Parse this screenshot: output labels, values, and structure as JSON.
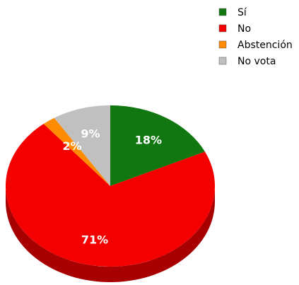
{
  "chart_data": {
    "type": "pie",
    "title": "",
    "categories": [
      "Sí",
      "No",
      "Abstención",
      "No vota"
    ],
    "values": [
      18,
      71,
      2,
      9
    ],
    "labels": [
      "18%",
      "71%",
      "2%",
      "9%"
    ],
    "colors": [
      "#117811",
      "#f40000",
      "#ff8c00",
      "#c0c0c0"
    ],
    "side_colors": [
      "#0a4d0a",
      "#a80000",
      "#b86400",
      "#8a8a8a"
    ],
    "legend_position": "top-right",
    "three_d": true
  }
}
